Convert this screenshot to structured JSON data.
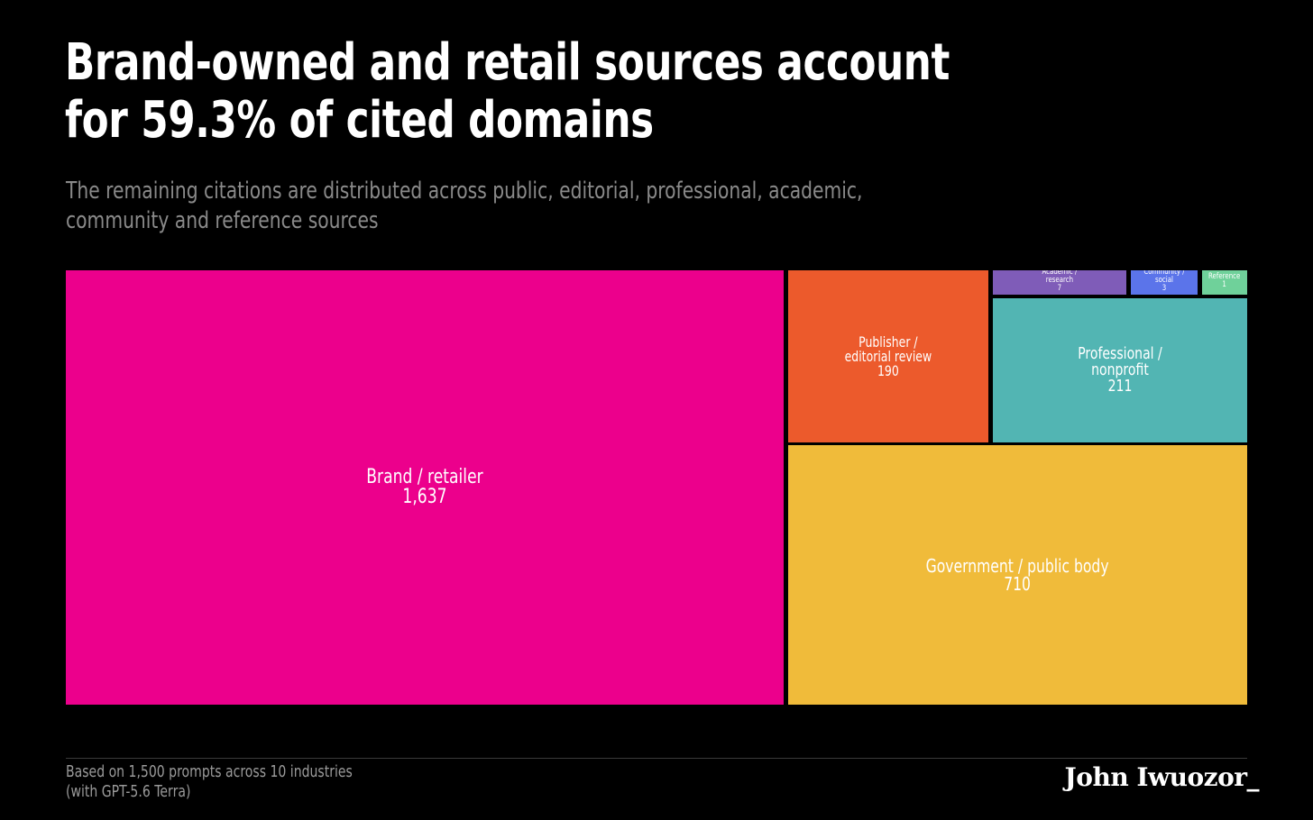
{
  "chart_data": {
    "type": "treemap",
    "title": "Brand-owned and retail sources account for 59.3% of cited domains",
    "subtitle": "The remaining citations are distributed across public, editorial, professional, academic, community and reference sources",
    "categories": [
      "Brand / retailer",
      "Government / public body",
      "Professional / nonprofit",
      "Publisher / editorial review",
      "Academic / research",
      "Community / social",
      "Reference"
    ],
    "values": [
      1637,
      710,
      211,
      190,
      7,
      3,
      1
    ],
    "display_values": [
      "1,637",
      "710",
      "211",
      "190",
      "7",
      "3",
      "1"
    ],
    "colors": [
      "#ec008c",
      "#f0bb3a",
      "#52b5b3",
      "#ec5a2c",
      "#7f5cb8",
      "#5b74ea",
      "#6fd19a"
    ],
    "legend": "none",
    "grid": false
  },
  "footer": {
    "note_line1": "Based on 1,500 prompts across 10 industries",
    "note_line2": "(with GPT-5.6 Terra)",
    "signature": "John Iwuozor_"
  }
}
